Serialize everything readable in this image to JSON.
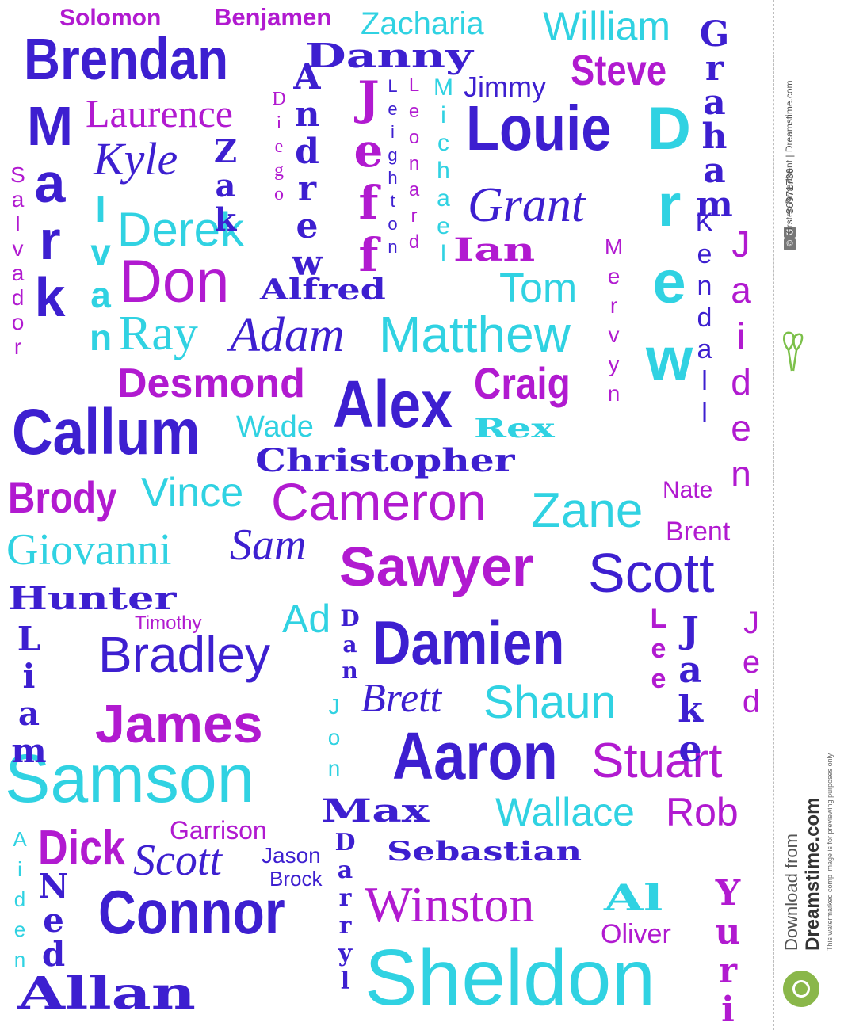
{
  "words": {
    "solomon": "Solomon",
    "benjamen": "Benjamen",
    "zacharia": "Zacharia",
    "william": "William",
    "brendan": "Brendan",
    "danny": "Danny",
    "steve": "Steve",
    "jimmy": "Jimmy",
    "laurence": "Laurence",
    "louie": "Louie",
    "kyle": "Kyle",
    "grant": "Grant",
    "derek": "Derek",
    "ian": "Ian",
    "don": "Don",
    "alfred": "Alfred",
    "tom": "Tom",
    "ray": "Ray",
    "adam": "Adam",
    "matthew": "Matthew",
    "desmond": "Desmond",
    "craig": "Craig",
    "alex": "Alex",
    "callum": "Callum",
    "wade": "Wade",
    "rex": "Rex",
    "christopher": "Christopher",
    "brody": "Brody",
    "vince": "Vince",
    "cameron": "Cameron",
    "nate": "Nate",
    "zane": "Zane",
    "brent": "Brent",
    "giovanni": "Giovanni",
    "sam": "Sam",
    "sawyer": "Sawyer",
    "scott1": "Scott",
    "hunter": "Hunter",
    "timothy": "Timothy",
    "ad": "Ad",
    "bradley": "Bradley",
    "damien": "Damien",
    "brett": "Brett",
    "shaun": "Shaun",
    "james": "James",
    "aaron": "Aaron",
    "samson": "Samson",
    "stuart": "Stuart",
    "max": "Max",
    "wallace": "Wallace",
    "rob": "Rob",
    "garrison": "Garrison",
    "dick": "Dick",
    "scott2": "Scott",
    "jason": "Jason",
    "brock": "Brock",
    "sebastian": "Sebastian",
    "connor": "Connor",
    "winston": "Winston",
    "al": "Al",
    "oliver": "Oliver",
    "allan": "Allan",
    "sheldon": "Sheldon"
  },
  "vertical_words": {
    "graham": "Graham",
    "mark": "Mark",
    "andrew": "Andrew",
    "jeff": "Jeff",
    "leighton": "Leighton",
    "leonard": "Leonard",
    "michael": "Michael",
    "diego": "Diego",
    "zak": "Zak",
    "drew": "Drew",
    "salvador": "Salvador",
    "ivan": "Ivan",
    "kendall": "Kendall",
    "jaiden": "Jaiden",
    "mervyn": "Mervyn",
    "liam": "Liam",
    "dan": "Dan",
    "lee": "Lee",
    "jake": "Jake",
    "jed": "Jed",
    "jon": "Jon",
    "aiden": "Aiden",
    "ned": "Ned",
    "darryl": "Darryl",
    "yuri": "Yuri"
  },
  "sidebar": {
    "id_label": "ID",
    "id_number": "36971736",
    "copyright_symbol": "©",
    "credit": "Kirsten Broadbent | Dreamstime.com",
    "notice": "This watermarked comp image is for previewing purposes only.",
    "download_from": "Download from",
    "brand": "Dreamstime.com"
  },
  "colors": {
    "purple": "#3d1fd0",
    "magenta": "#b11ad0",
    "cyan": "#30d2e2",
    "logo_green": "#8ab74a"
  }
}
